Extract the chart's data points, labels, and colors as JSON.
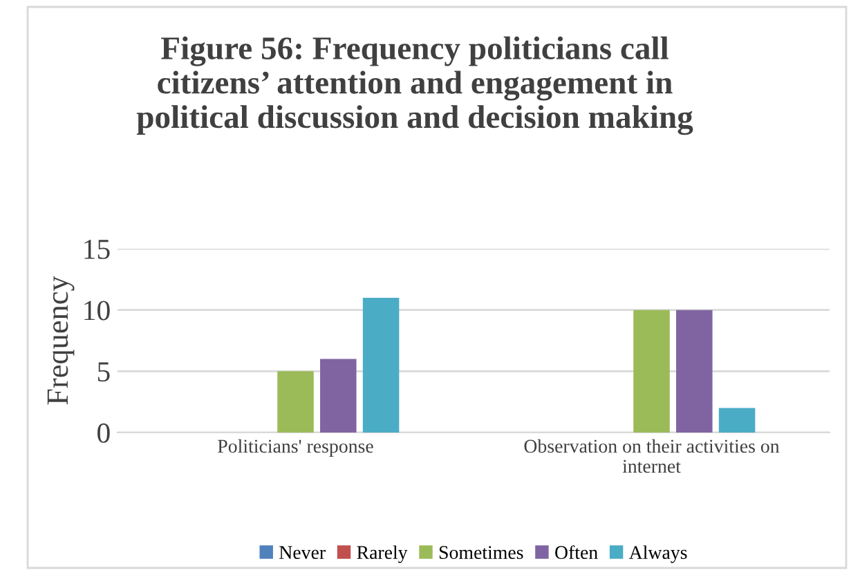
{
  "chart_data": {
    "type": "bar",
    "title": "Figure 56: Frequency politicians call\ncitizens’ attention and engagement in\npolitical discussion and decision making",
    "ylabel": "Frequency",
    "categories": [
      "Politicians' response",
      "Observation on their activities on\ninternet"
    ],
    "series": [
      {
        "name": "Never",
        "color": "#4f81bd",
        "values": [
          0,
          0
        ]
      },
      {
        "name": "Rarely",
        "color": "#c0504d",
        "values": [
          0,
          0
        ]
      },
      {
        "name": "Sometimes",
        "color": "#9bbb59",
        "values": [
          5,
          10
        ]
      },
      {
        "name": "Often",
        "color": "#8064a2",
        "values": [
          6,
          10
        ]
      },
      {
        "name": "Always",
        "color": "#4bacc6",
        "values": [
          11,
          2
        ]
      }
    ],
    "ylim": [
      0,
      15
    ],
    "yticks": [
      0,
      5,
      10,
      15
    ],
    "grid": "y",
    "legend": "bottom"
  }
}
